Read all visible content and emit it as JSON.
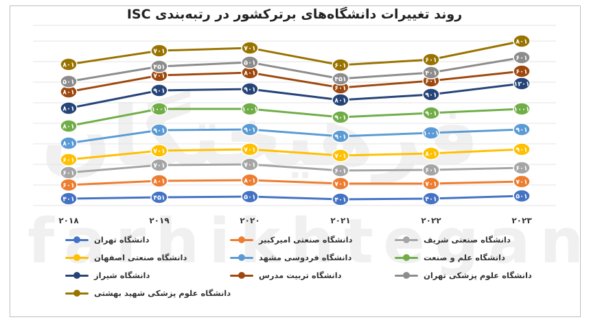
{
  "chart_data": {
    "type": "line",
    "title": "روند تغییرات دانشگاه‌های برترکشور در رتبه‌بندی ISC",
    "x": [
      "۲۰۱۸",
      "۲۰۱۹",
      "۲۰۲۰",
      "۲۰۲۱",
      "۲۰۲۲",
      "۲۰۲۳"
    ],
    "grid": true,
    "legend_position": "bottom",
    "series": [
      {
        "name": "دانشگاه تهران",
        "color": "#4472C4",
        "labels": [
          "۴۰۱",
          "۴۵۱",
          "۵۰۱",
          "۴۰۱",
          "۴۰۱",
          "۵۰۱"
        ]
      },
      {
        "name": "دانشگاه صنعتی امیرکبیر",
        "color": "#ED7D31",
        "labels": [
          "۶۰۱",
          "۸۰۱",
          "۸۰۱",
          "۷۰۱",
          "۷۰۱",
          "۷۰۱"
        ]
      },
      {
        "name": "دانشگاه صنعتی شریف",
        "color": "#A5A5A5",
        "labels": [
          "۶۰۱",
          "۷۰۱",
          "۷۰۱",
          "۶۰۱",
          "۶۰۱",
          "۶۰۱"
        ]
      },
      {
        "name": "دانشگاه صنعتی اصفهان",
        "color": "#FFC000",
        "labels": [
          "۶۰۱",
          "۷۰۱",
          "۷۰۱",
          "۷۰۱",
          "۸۰۱",
          "۹۰۱"
        ]
      },
      {
        "name": "دانشگاه فردوسی مشهد",
        "color": "#5B9BD5",
        "labels": [
          "۸۰۱",
          "۹۰۱",
          "۹۰۱",
          "۹۰۱",
          "۱۰۰۱",
          "۹۰۱"
        ]
      },
      {
        "name": "دانشگاه علم و صنعت",
        "color": "#70AD47",
        "labels": [
          "۸۰۱",
          "۱۰۰۱",
          "۱۰۰۱",
          "۹۰۱",
          "۹۰۱",
          "۱۰۰۱"
        ]
      },
      {
        "name": "دانشگاه شیراز",
        "color": "#264478",
        "labels": [
          "۸۰۱",
          "۹۰۱",
          "۹۰۱",
          "۸۰۱",
          "۹۰۱",
          "۱۲۰۱"
        ]
      },
      {
        "name": "دانشگاه تربیت مدرس",
        "color": "#9E480E",
        "labels": [
          "۸۰۱",
          "۷۰۱",
          "۸۰۱",
          "۶۰۱",
          "۶۰۱",
          "۶۰۱"
        ]
      },
      {
        "name": "دانشگاه علوم پزشکی تهران",
        "color": "#8C8C8C",
        "labels": [
          "۵۰۱",
          "۴۵۱",
          "۵۰۱",
          "۴۵۱",
          "۴۰۱",
          "۶۰۱"
        ]
      },
      {
        "name": "دانشگاه علوم پزشکی شهید بهشتی",
        "color": "#997300",
        "labels": [
          "۸۰۱",
          "۷۰۱",
          "۷۰۱",
          "۶۰۱",
          "۶۰۱",
          "۸۰۱"
        ]
      }
    ]
  },
  "watermark": {
    "arabic": "فرهیختگان",
    "latin": "farhikhtegan"
  }
}
